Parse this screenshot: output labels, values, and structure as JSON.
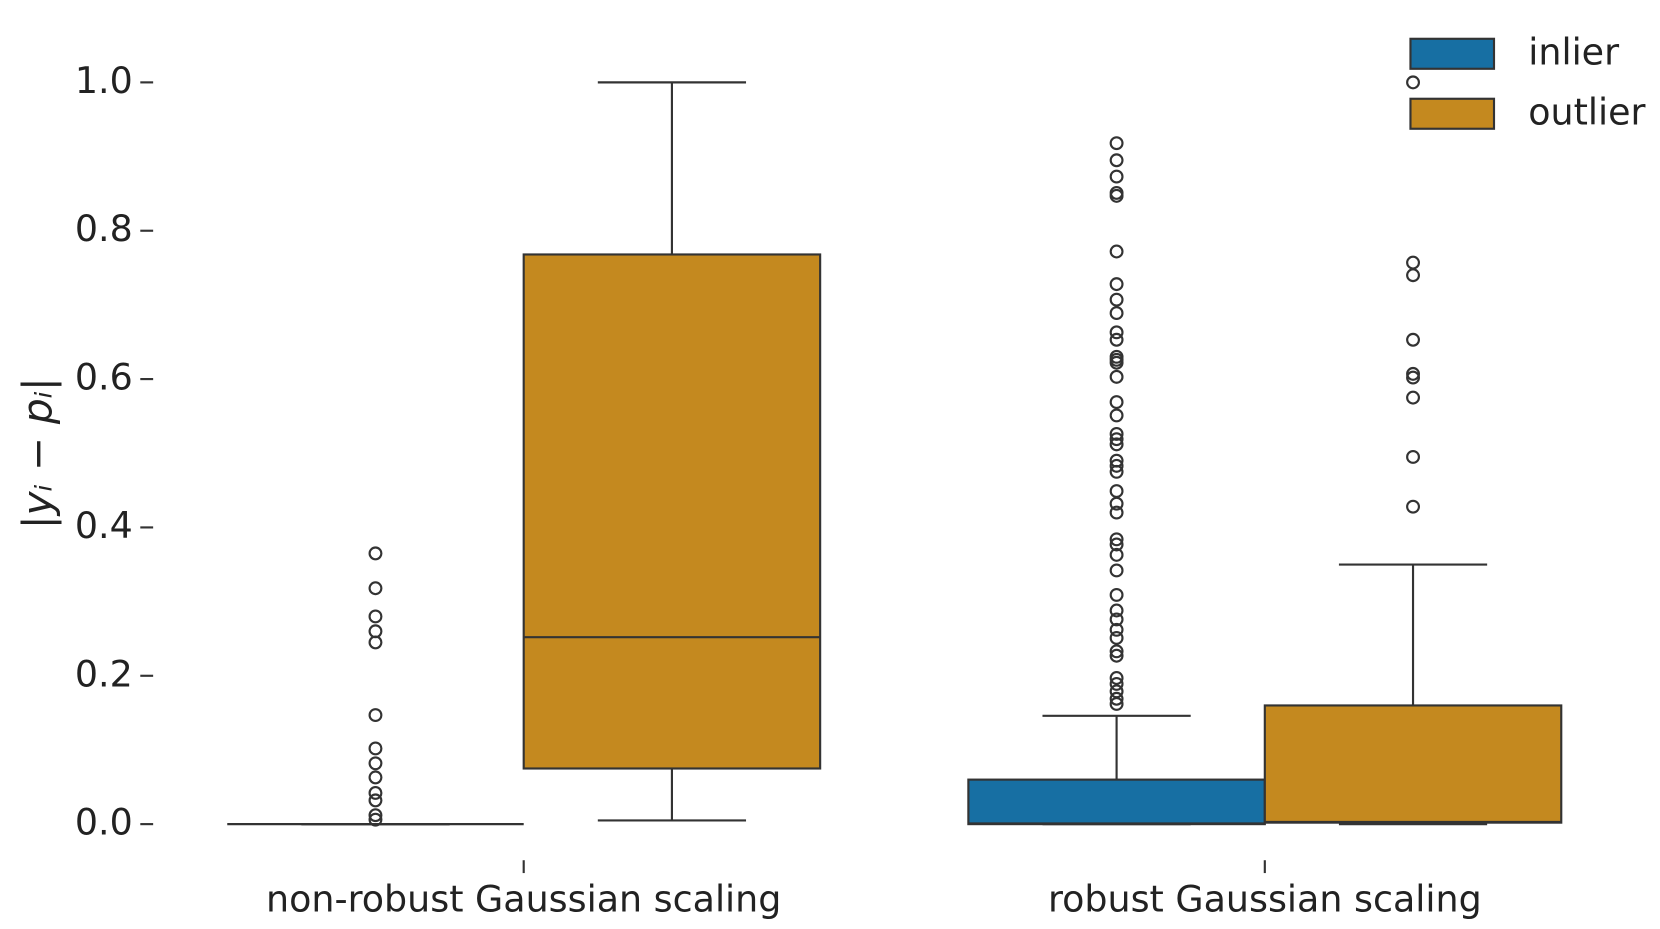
{
  "chart_data": {
    "type": "box",
    "ylabel": "|yᵢ − pᵢ|",
    "categories": [
      "non-robust Gaussian scaling",
      "robust Gaussian scaling"
    ],
    "ylim": [
      -0.04,
      1.04
    ],
    "yticks": [
      {
        "value": 0,
        "label": "0.0"
      },
      {
        "value": 0.2,
        "label": "0.2"
      },
      {
        "value": 0.4,
        "label": "0.4"
      },
      {
        "value": 0.6,
        "label": "0.6"
      },
      {
        "value": 0.8,
        "label": "0.8"
      },
      {
        "value": 1,
        "label": "1.0"
      }
    ],
    "legend": "upper right",
    "series": [
      {
        "name": "inlier",
        "color": "#176fa3",
        "boxes": [
          {
            "min": 0,
            "q1": 0,
            "median": 0,
            "q3": 0,
            "max": 0,
            "outliers": [
              0.365,
              0.318,
              0.28,
              0.26,
              0.245,
              0.147,
              0.102,
              0.082,
              0.063,
              0.042,
              0.032,
              0.012,
              0.006
            ]
          },
          {
            "min": 0,
            "q1": 0,
            "median": 0.001,
            "q3": 0.06,
            "max": 0.146,
            "outliers": [
              0.918,
              0.895,
              0.873,
              0.851,
              0.847,
              0.772,
              0.728,
              0.707,
              0.689,
              0.663,
              0.653,
              0.63,
              0.626,
              0.622,
              0.603,
              0.569,
              0.551,
              0.526,
              0.519,
              0.512,
              0.49,
              0.483,
              0.475,
              0.449,
              0.432,
              0.42,
              0.384,
              0.377,
              0.363,
              0.342,
              0.309,
              0.288,
              0.276,
              0.262,
              0.251,
              0.233,
              0.227,
              0.197,
              0.189,
              0.179,
              0.169,
              0.162
            ]
          }
        ]
      },
      {
        "name": "outlier",
        "color": "#c4891f",
        "boxes": [
          {
            "min": 0.005,
            "q1": 0.075,
            "median": 0.252,
            "q3": 0.768,
            "max": 1.0,
            "outliers": []
          },
          {
            "min": 0,
            "q1": 0.002,
            "median": 0.003,
            "q3": 0.16,
            "max": 0.35,
            "outliers": [
              1.0,
              0.757,
              0.74,
              0.653,
              0.607,
              0.602,
              0.575,
              0.495,
              0.428
            ]
          }
        ]
      }
    ]
  }
}
